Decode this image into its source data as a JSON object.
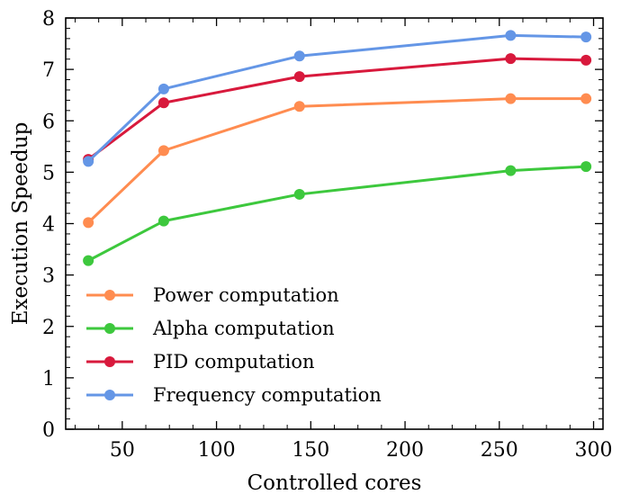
{
  "chart_data": {
    "type": "line",
    "xlabel": "Controlled cores",
    "ylabel": "Execution Speedup",
    "xlim": [
      20,
      305
    ],
    "ylim": [
      0,
      8
    ],
    "xticks": [
      50,
      100,
      150,
      200,
      250,
      300
    ],
    "yticks": [
      0,
      1,
      2,
      3,
      4,
      5,
      6,
      7,
      8
    ],
    "x": [
      32,
      72,
      144,
      256,
      296
    ],
    "legend_position": "lower-left",
    "grid": false,
    "series": [
      {
        "name": "Power computation",
        "color": "#ff8c50",
        "values": [
          4.02,
          5.42,
          6.28,
          6.43,
          6.43
        ]
      },
      {
        "name": "Alpha computation",
        "color": "#3dc83d",
        "values": [
          3.28,
          4.05,
          4.57,
          5.03,
          5.11
        ]
      },
      {
        "name": "PID computation",
        "color": "#d8193c",
        "values": [
          5.25,
          6.35,
          6.86,
          7.21,
          7.18
        ]
      },
      {
        "name": "Frequency computation",
        "color": "#6496e6",
        "values": [
          5.21,
          6.62,
          7.26,
          7.66,
          7.63
        ]
      }
    ]
  }
}
